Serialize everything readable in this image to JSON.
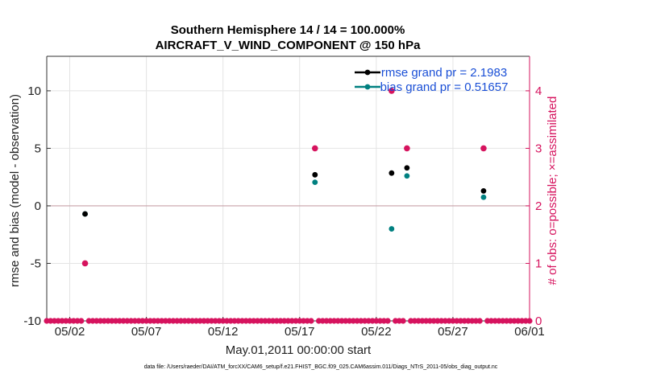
{
  "chart_data": {
    "type": "scatter",
    "title_line1": "Southern Hemisphere 14 / 14 = 100.000%",
    "title_line2": "AIRCRAFT_V_WIND_COMPONENT @ 150 hPa",
    "xlabel": "May.01,2011 00:00:00 start",
    "ylabel_left": "rmse and bias (model - observation)",
    "ylabel_right": "# of obs: o=possible; ×=assimilated",
    "footer": "data file: /Users/raeder/DAI/ATM_forcXX/CAM6_setup/f.e21.FHIST_BGC.f09_025.CAM6assim.011/Diags_NTrS_2011-05/obs_diag_output.nc",
    "x_ticks": [
      "05/02",
      "05/07",
      "05/12",
      "05/17",
      "05/22",
      "05/27",
      "06/01"
    ],
    "x_tick_days": [
      2,
      7,
      12,
      17,
      22,
      27,
      32
    ],
    "xlim": [
      0.5,
      32
    ],
    "ylim_left": [
      -10,
      13
    ],
    "y_ticks_left": [
      "-10",
      "-5",
      "0",
      "5",
      "10"
    ],
    "y_tick_values_left": [
      -10,
      -5,
      0,
      5,
      10
    ],
    "ylim_right": [
      0,
      4.6
    ],
    "y_ticks_right": [
      "0",
      "1",
      "2",
      "3",
      "4"
    ],
    "y_tick_values_right": [
      0,
      1,
      2,
      3,
      4
    ],
    "grid": true,
    "legend_position": "top-right",
    "series": [
      {
        "name": "rmse grand pr = 2.1983",
        "color": "#000000",
        "axis": "left",
        "points": [
          {
            "x": 3.0,
            "y": -0.7
          },
          {
            "x": 18.0,
            "y": 2.7
          },
          {
            "x": 23.0,
            "y": 2.85
          },
          {
            "x": 24.0,
            "y": 3.3
          },
          {
            "x": 29.0,
            "y": 1.3
          }
        ]
      },
      {
        "name": "bias grand pr = 0.51657",
        "color": "#008080",
        "axis": "left",
        "points": [
          {
            "x": 3.0,
            "y": -0.7
          },
          {
            "x": 18.0,
            "y": 2.05
          },
          {
            "x": 23.0,
            "y": -2.0
          },
          {
            "x": 24.0,
            "y": 2.6
          },
          {
            "x": 29.0,
            "y": 0.75
          }
        ]
      },
      {
        "name": "",
        "color": "#d6135e",
        "axis": "right",
        "points": [
          {
            "x": 3.0,
            "y": 1
          },
          {
            "x": 18.0,
            "y": 3
          },
          {
            "x": 23.0,
            "y": 4
          },
          {
            "x": 24.0,
            "y": 3
          },
          {
            "x": 29.0,
            "y": 3
          }
        ],
        "zero_count_step_days": 0.25
      }
    ],
    "colors": {
      "rmse": "#000000",
      "bias": "#008080",
      "obs": "#d6135e",
      "zero_line": "#c8a0a8",
      "legend_text": "#1a4fd6"
    }
  }
}
